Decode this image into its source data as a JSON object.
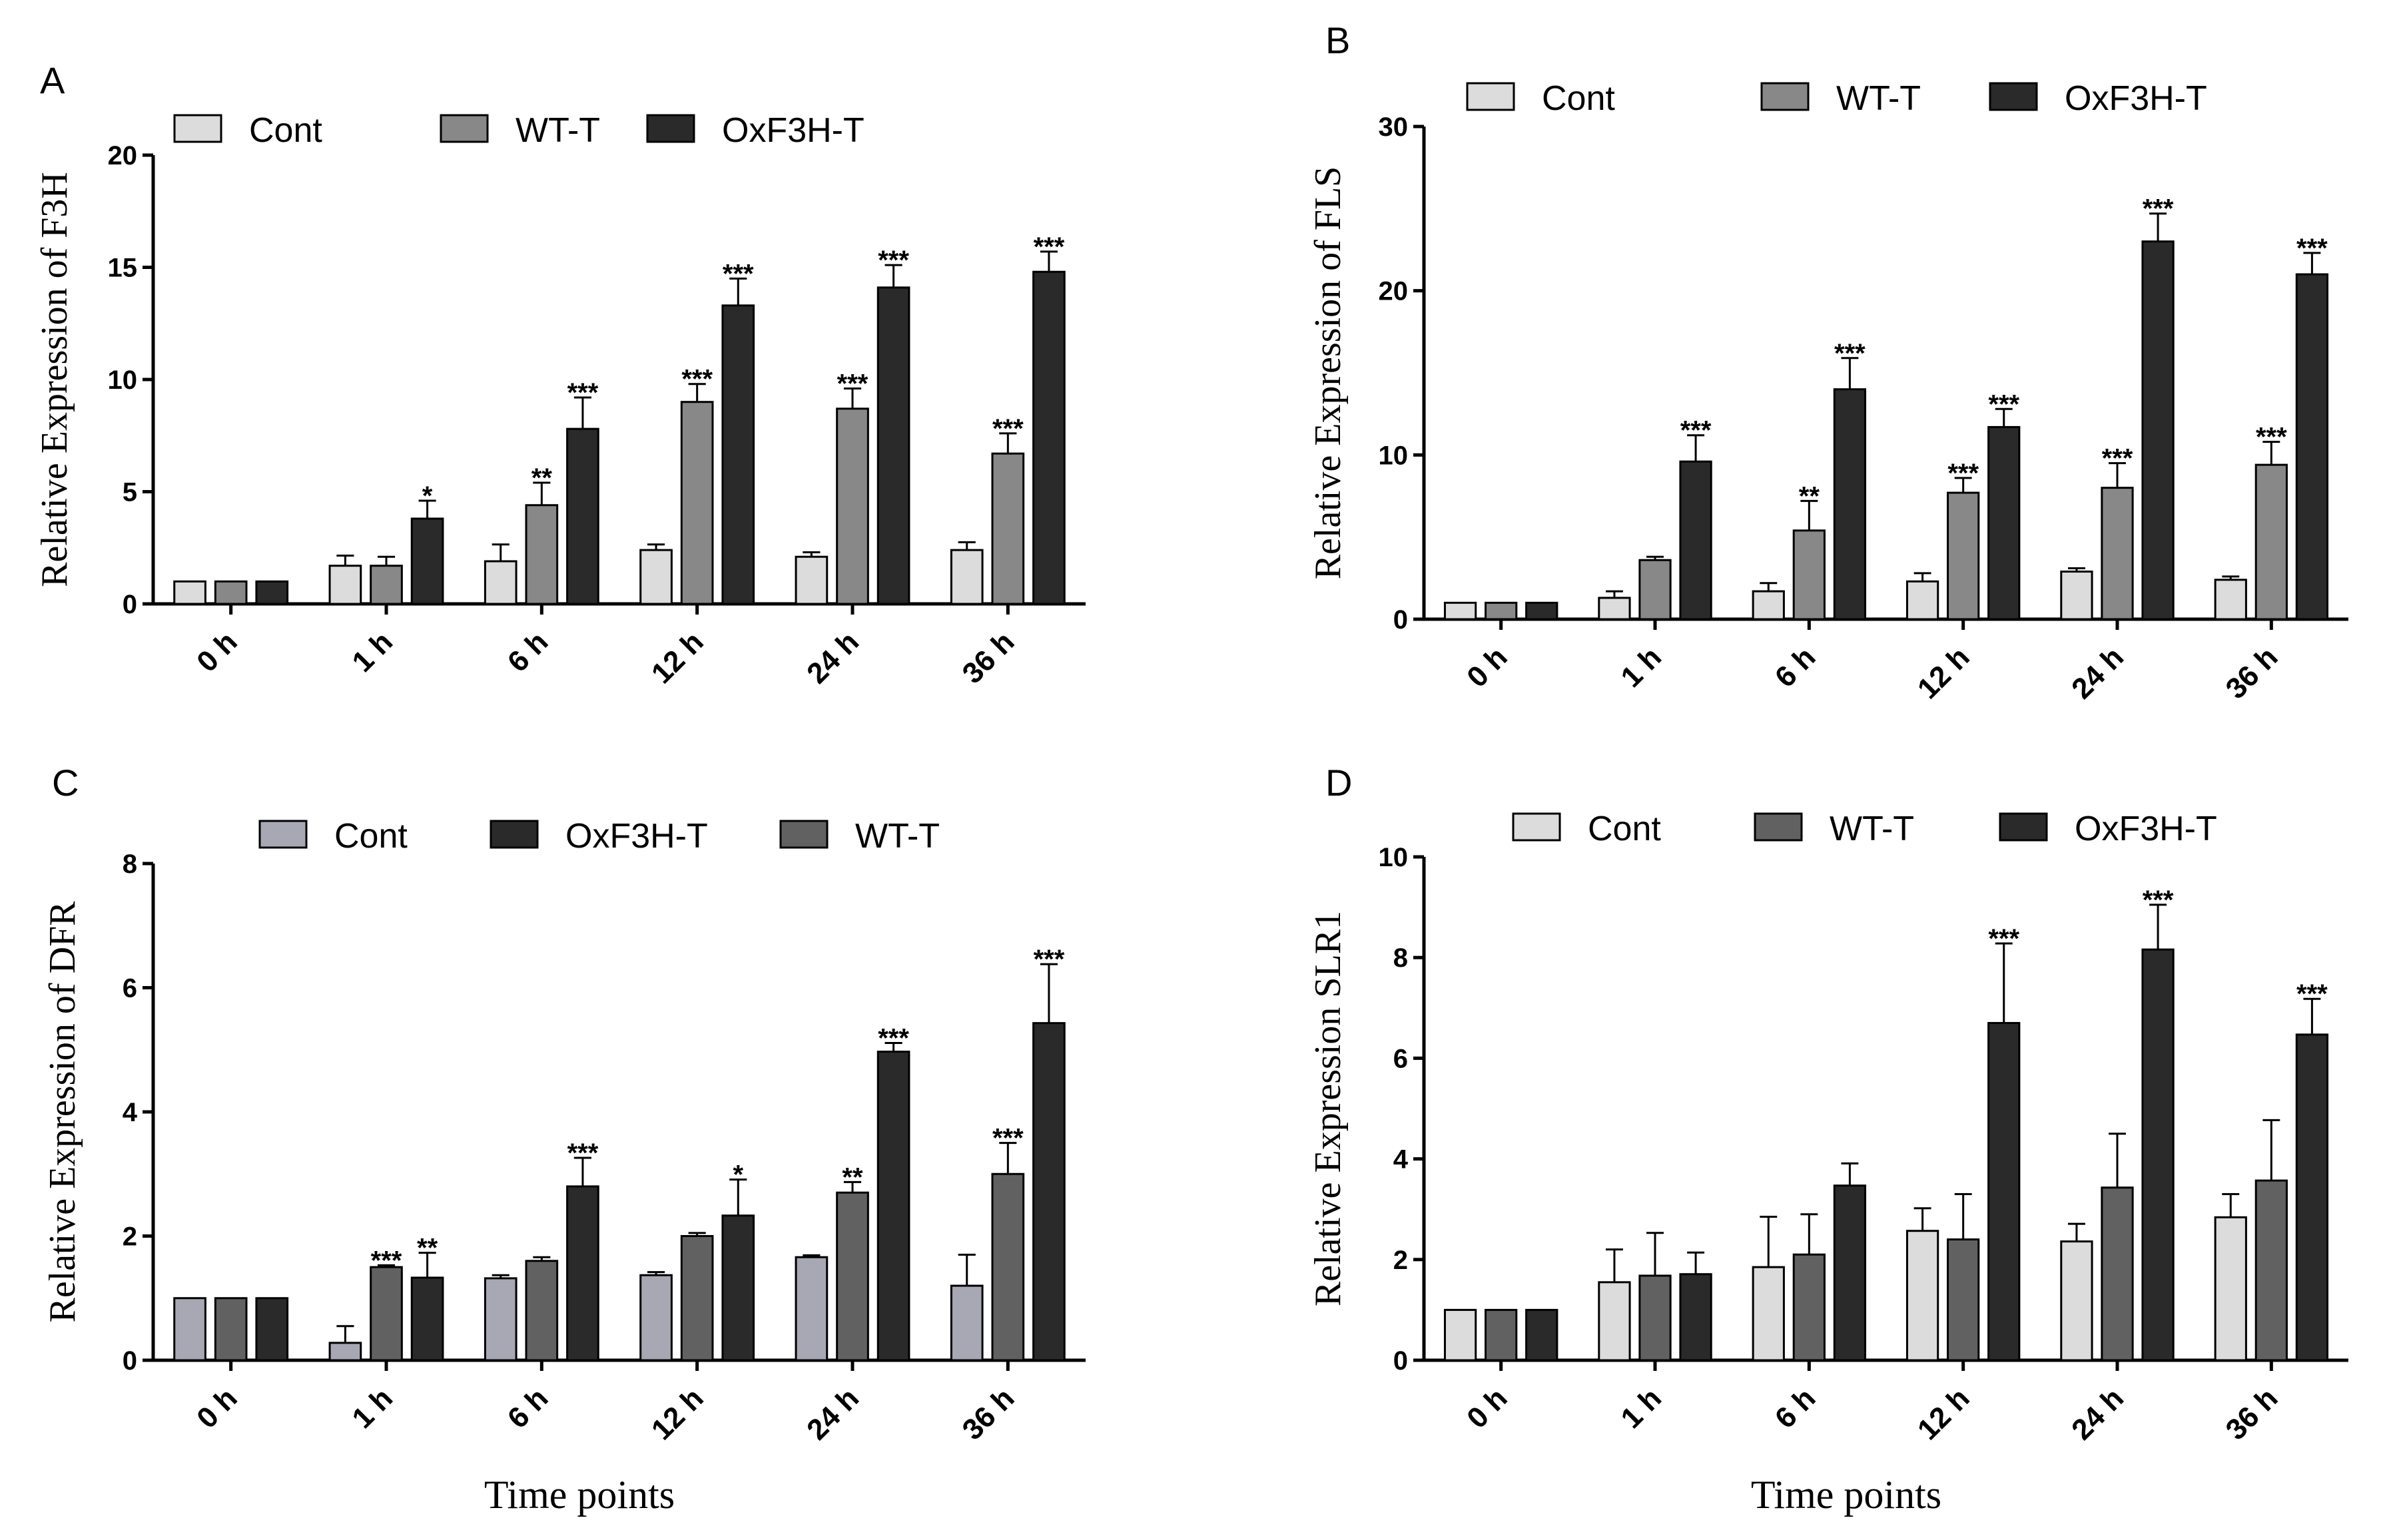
{
  "colors": {
    "cont_light": "#dcdcdc",
    "cont_purple": "#a8a8b4",
    "wt": "#888888",
    "wt_dark": "#616161",
    "ox": "#2a2a2a"
  },
  "chart_data": [
    {
      "type": "bar",
      "panel": "A",
      "ylabel": "Relative Expression of F3H",
      "xlabel": "",
      "ylim": [
        0,
        20
      ],
      "yticks": [
        0,
        5,
        10,
        15,
        20
      ],
      "categories": [
        "0 h",
        "1 h",
        "6 h",
        "12 h",
        "24 h",
        "36 h"
      ],
      "legend": [
        "Cont",
        "WT-T",
        "OxF3H-T"
      ],
      "series": [
        {
          "name": "Cont",
          "color": "#dcdcdc",
          "values": [
            1.0,
            1.7,
            1.9,
            2.4,
            2.1,
            2.4
          ],
          "errors": [
            0.0,
            0.45,
            0.75,
            0.25,
            0.2,
            0.35
          ],
          "stars": [
            "",
            "",
            "",
            "",
            "",
            ""
          ]
        },
        {
          "name": "WT-T",
          "color": "#888888",
          "values": [
            1.0,
            1.7,
            4.4,
            9.0,
            8.7,
            6.7
          ],
          "errors": [
            0.0,
            0.4,
            1.0,
            0.8,
            0.9,
            0.9
          ],
          "stars": [
            "",
            "",
            "**",
            "***",
            "***",
            "***"
          ]
        },
        {
          "name": "OxF3H-T",
          "color": "#2a2a2a",
          "values": [
            1.0,
            3.8,
            7.8,
            13.3,
            14.1,
            14.8
          ],
          "errors": [
            0.0,
            0.8,
            1.4,
            1.2,
            1.0,
            0.9
          ],
          "stars": [
            "",
            "*",
            "***",
            "***",
            "***",
            "***"
          ]
        }
      ]
    },
    {
      "type": "bar",
      "panel": "B",
      "ylabel": "Relative Expression of FLS",
      "xlabel": "",
      "ylim": [
        0,
        30
      ],
      "yticks": [
        0,
        10,
        20,
        30
      ],
      "categories": [
        "0 h",
        "1 h",
        "6 h",
        "12 h",
        "24 h",
        "36 h"
      ],
      "legend": [
        "Cont",
        "WT-T",
        "OxF3H-T"
      ],
      "series": [
        {
          "name": "Cont",
          "color": "#dcdcdc",
          "values": [
            1.0,
            1.3,
            1.7,
            2.3,
            2.9,
            2.4
          ],
          "errors": [
            0.0,
            0.4,
            0.5,
            0.5,
            0.2,
            0.2
          ],
          "stars": [
            "",
            "",
            "",
            "",
            "",
            ""
          ]
        },
        {
          "name": "WT-T",
          "color": "#888888",
          "values": [
            1.0,
            3.6,
            5.4,
            7.7,
            8.0,
            9.4
          ],
          "errors": [
            0.0,
            0.2,
            1.8,
            0.9,
            1.5,
            1.4
          ],
          "stars": [
            "",
            "",
            "**",
            "***",
            "***",
            "***"
          ]
        },
        {
          "name": "OxF3H-T",
          "color": "#2a2a2a",
          "values": [
            1.0,
            9.6,
            14.0,
            11.7,
            23.0,
            21.0
          ],
          "errors": [
            0.0,
            1.6,
            1.9,
            1.1,
            1.7,
            1.3
          ],
          "stars": [
            "",
            "***",
            "***",
            "***",
            "***",
            "***"
          ]
        }
      ]
    },
    {
      "type": "bar",
      "panel": "C",
      "ylabel": "Relative Expression of DFR",
      "xlabel": "Time points",
      "ylim": [
        0,
        8
      ],
      "yticks": [
        0,
        2,
        4,
        6,
        8
      ],
      "categories": [
        "0 h",
        "1 h",
        "6 h",
        "12 h",
        "24 h",
        "36 h"
      ],
      "legend": [
        "Cont",
        "OxF3H-T",
        "WT-T"
      ],
      "series": [
        {
          "name": "Cont",
          "color": "#a8a8b4",
          "values": [
            1.0,
            0.28,
            1.32,
            1.37,
            1.66,
            1.2
          ],
          "errors": [
            0.0,
            0.27,
            0.05,
            0.05,
            0.03,
            0.5
          ],
          "stars": [
            "",
            "",
            "",
            "",
            "",
            ""
          ]
        },
        {
          "name": "WT-T",
          "color": "#616161",
          "values": [
            1.0,
            1.5,
            1.6,
            2.0,
            2.7,
            3.0
          ],
          "errors": [
            0.0,
            0.03,
            0.06,
            0.05,
            0.17,
            0.5
          ],
          "stars": [
            "",
            "***",
            "",
            "",
            "**",
            "***"
          ]
        },
        {
          "name": "OxF3H-T",
          "color": "#2a2a2a",
          "values": [
            1.0,
            1.33,
            2.8,
            2.33,
            4.97,
            5.43
          ],
          "errors": [
            0.0,
            0.4,
            0.46,
            0.58,
            0.14,
            0.95
          ],
          "stars": [
            "",
            "**",
            "***",
            "*",
            "***",
            "***"
          ]
        }
      ]
    },
    {
      "type": "bar",
      "panel": "D",
      "ylabel": "Relative Expression SLR1",
      "xlabel": "Time points",
      "ylim": [
        0,
        10
      ],
      "yticks": [
        0,
        2,
        4,
        6,
        8,
        10
      ],
      "categories": [
        "0 h",
        "1 h",
        "6 h",
        "12 h",
        "24 h",
        "36 h"
      ],
      "legend": [
        "Cont",
        "WT-T",
        "OxF3H-T"
      ],
      "series": [
        {
          "name": "Cont",
          "color": "#dcdcdc",
          "values": [
            1.0,
            1.55,
            1.85,
            2.57,
            2.36,
            2.84
          ],
          "errors": [
            0.0,
            0.65,
            1.0,
            0.45,
            0.35,
            0.46
          ],
          "stars": [
            "",
            "",
            "",
            "",
            "",
            ""
          ]
        },
        {
          "name": "WT-T",
          "color": "#616161",
          "values": [
            1.0,
            1.68,
            2.1,
            2.4,
            3.43,
            3.57
          ],
          "errors": [
            0.0,
            0.85,
            0.8,
            0.9,
            1.07,
            1.2
          ],
          "stars": [
            "",
            "",
            "",
            "",
            "",
            ""
          ]
        },
        {
          "name": "OxF3H-T",
          "color": "#2a2a2a",
          "values": [
            1.0,
            1.71,
            3.47,
            6.7,
            8.16,
            6.47
          ],
          "errors": [
            0.0,
            0.43,
            0.44,
            1.58,
            0.89,
            0.71
          ],
          "stars": [
            "",
            "",
            "",
            "***",
            "***",
            "***"
          ]
        }
      ]
    }
  ]
}
